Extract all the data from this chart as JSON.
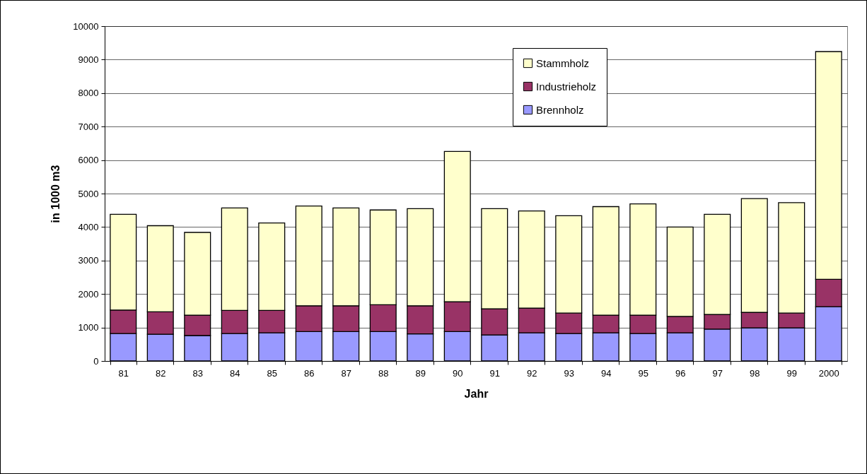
{
  "chart_data": {
    "type": "bar",
    "stacked": true,
    "xlabel": "Jahr",
    "ylabel": "in 1000 m3",
    "categories": [
      "81",
      "82",
      "83",
      "84",
      "85",
      "86",
      "87",
      "88",
      "89",
      "90",
      "91",
      "92",
      "93",
      "94",
      "95",
      "96",
      "97",
      "98",
      "99",
      "2000"
    ],
    "series": [
      {
        "name": "Brennholz",
        "color": "#9999ff",
        "values": [
          820,
          800,
          760,
          820,
          840,
          880,
          880,
          880,
          810,
          880,
          780,
          840,
          820,
          840,
          820,
          840,
          950,
          990,
          990,
          1620
        ]
      },
      {
        "name": "Industrieholz",
        "color": "#993366",
        "values": [
          700,
          670,
          610,
          690,
          670,
          770,
          770,
          800,
          840,
          890,
          780,
          740,
          610,
          530,
          550,
          490,
          440,
          460,
          440,
          820
        ]
      },
      {
        "name": "Stammholz",
        "color": "#ffffcc",
        "values": [
          2860,
          2570,
          2470,
          3060,
          2610,
          2980,
          2920,
          2830,
          2900,
          4490,
          2990,
          2900,
          2910,
          3240,
          3320,
          2670,
          2990,
          3400,
          3300,
          6800
        ]
      }
    ],
    "ylim": [
      0,
      10000
    ],
    "yticks": [
      0,
      1000,
      2000,
      3000,
      4000,
      5000,
      6000,
      7000,
      8000,
      9000,
      10000
    ],
    "grid": "y",
    "legend": "top right"
  }
}
